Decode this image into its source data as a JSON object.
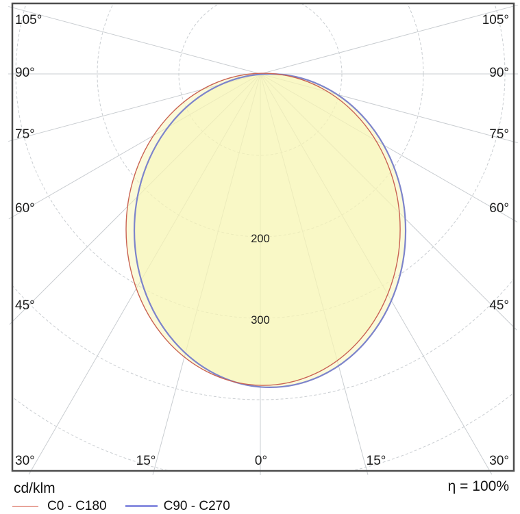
{
  "chart_data": {
    "type": "polar",
    "subtype": "luminaire_polar_intensity_diagram",
    "title": "",
    "units": "cd/klm",
    "efficiency": "η = 100%",
    "gamma_step_deg": 15,
    "gamma_max_deg": 105,
    "radial_grid_values": [
      100,
      200,
      300,
      400,
      500
    ],
    "radial_axis_labels": [
      "200",
      "300"
    ],
    "angle_labels": {
      "left": [
        "105°",
        "90°",
        "75°",
        "60°",
        "45°",
        "30°"
      ],
      "right": [
        "105°",
        "90°",
        "75°",
        "60°",
        "45°",
        "30°"
      ],
      "bottom": [
        "15°",
        "0°",
        "15°"
      ]
    },
    "max_intensity_cd_per_klm": 385,
    "fill_color": "#f8f5b4",
    "grid_color": "#c9cdd1",
    "series": [
      {
        "name": "C0 - C180",
        "curve_color": "#c96253",
        "legend_color": "#e8a49a",
        "gamma_deg": [
          0,
          15,
          30,
          45,
          60,
          75,
          90
        ],
        "intensity_c0": [
          384,
          367,
          317,
          246,
          168,
          91,
          20
        ],
        "intensity_c180": [
          384,
          361,
          305,
          230,
          150,
          72,
          10
        ],
        "ellipse_fit_units": {
          "cx": 3.4,
          "cy": 190.8,
          "rx": 168.1,
          "ry": 191.6
        }
      },
      {
        "name": "C90 - C270",
        "curve_color": "#7d84cb",
        "legend_color": "#8a8fe0",
        "gamma_deg": [
          0,
          15,
          30,
          45,
          60,
          75,
          90
        ],
        "intensity_c90": [
          385,
          372,
          322,
          253,
          176,
          100,
          28
        ],
        "intensity_c270": [
          385,
          356,
          293,
          215,
          133,
          55,
          4
        ],
        "ellipse_fit_units": {
          "cx": 11.8,
          "cy": 192.4,
          "rx": 166.4,
          "ry": 192.4
        }
      }
    ]
  },
  "footer": {
    "units_label": "cd/klm",
    "legend": [
      {
        "label": "C0 - C180"
      },
      {
        "label": "C90 - C270"
      }
    ],
    "efficiency_label": "η = 100%"
  }
}
